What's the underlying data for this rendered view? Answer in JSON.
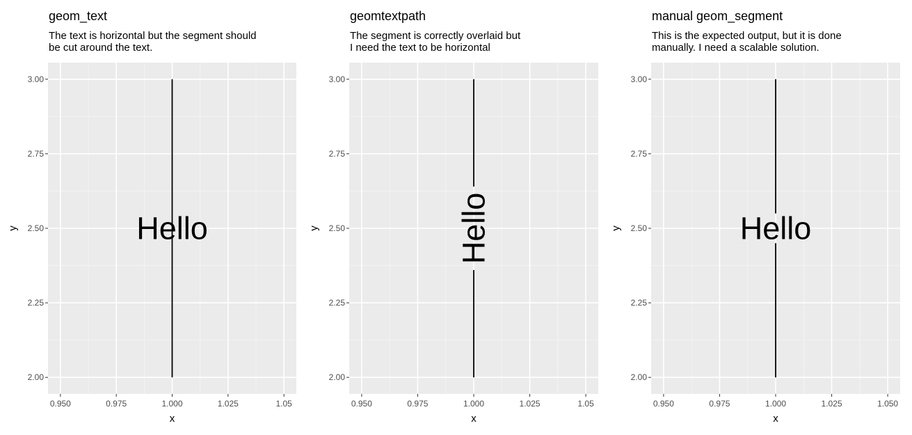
{
  "colors": {
    "panel_background": "#ebebeb",
    "major_grid": "#ffffff",
    "minor_grid": "#f5f5f5",
    "tick_text": "#4d4d4d",
    "segment": "#000000"
  },
  "chart_data": [
    {
      "type": "line",
      "title": "geom_text",
      "subtitle": [
        "The text is horizontal but the segment should",
        "be cut around the text."
      ],
      "xlabel": "x",
      "ylabel": "y",
      "xlim": [
        0.95,
        1.05
      ],
      "ylim": [
        2.0,
        3.0
      ],
      "x_ticks": [
        "0.950",
        "0.975",
        "1.000",
        "1.025",
        "1.05"
      ],
      "y_ticks": [
        "2.00",
        "2.25",
        "2.50",
        "2.75",
        "3.00"
      ],
      "grid": true,
      "segment": {
        "x": 1.0,
        "y_start": 2.0,
        "y_end": 3.0,
        "gaps": []
      },
      "label": {
        "text": "Hello",
        "x": 1.0,
        "y": 2.5,
        "orientation": "horizontal"
      }
    },
    {
      "type": "line",
      "title": "geomtextpath",
      "subtitle": [
        "The segment is correctly overlaid but",
        "I need the text to be horizontal"
      ],
      "xlabel": "x",
      "ylabel": "y",
      "xlim": [
        0.95,
        1.05
      ],
      "ylim": [
        2.0,
        3.0
      ],
      "x_ticks": [
        "0.950",
        "0.975",
        "1.000",
        "1.025",
        "1.05"
      ],
      "y_ticks": [
        "2.00",
        "2.25",
        "2.50",
        "2.75",
        "3.00"
      ],
      "grid": true,
      "segment": {
        "x": 1.0,
        "y_start": 2.0,
        "y_end": 3.0,
        "gaps": [
          [
            2.36,
            2.64
          ]
        ]
      },
      "label": {
        "text": "Hello",
        "x": 1.0,
        "y": 2.5,
        "orientation": "vertical"
      }
    },
    {
      "type": "line",
      "title": "manual geom_segment",
      "subtitle": [
        "This is the expected output, but it is done",
        "manually. I need a scalable solution."
      ],
      "xlabel": "x",
      "ylabel": "y",
      "xlim": [
        0.95,
        1.05
      ],
      "ylim": [
        2.0,
        3.0
      ],
      "x_ticks": [
        "0.950",
        "0.975",
        "1.000",
        "1.025",
        "1.050"
      ],
      "y_ticks": [
        "2.00",
        "2.25",
        "2.50",
        "2.75",
        "3.00"
      ],
      "grid": true,
      "segment": {
        "x": 1.0,
        "y_start": 2.0,
        "y_end": 3.0,
        "gaps": [
          [
            2.45,
            2.55
          ]
        ]
      },
      "label": {
        "text": "Hello",
        "x": 1.0,
        "y": 2.5,
        "orientation": "horizontal"
      }
    }
  ]
}
